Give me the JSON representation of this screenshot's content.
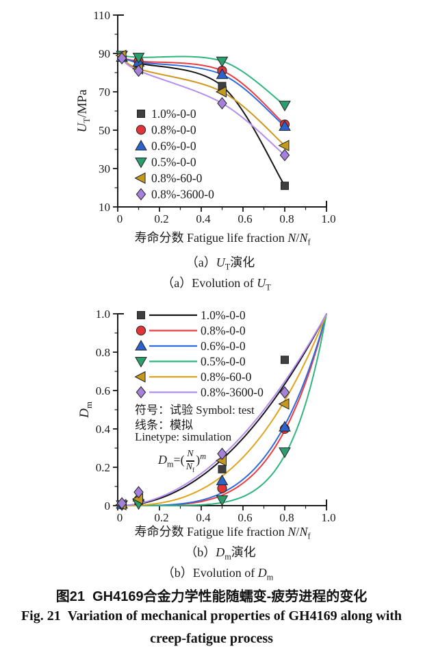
{
  "axis_labels": {
    "x": {
      "prefix": "寿命分数 Fatigue life fraction ",
      "var1": "N",
      "slash": "/",
      "var2": "N",
      "sub": "f"
    },
    "a_y": {
      "var": "U",
      "sub": "T",
      "unit": "/MPa"
    },
    "b_y": {
      "var": "D",
      "sub": "m"
    }
  },
  "figure_captions": {
    "a_cn": {
      "prefix": "（a）",
      "var": "U",
      "sub": "T",
      "suffix": "演化"
    },
    "a_en": {
      "prefix": "（a）Evolution of ",
      "var": "U",
      "sub": "T"
    },
    "b_cn": {
      "prefix": "（b）",
      "var": "D",
      "sub": "m",
      "suffix": "演化"
    },
    "b_en": {
      "prefix": "（b）Evolution of ",
      "var": "D",
      "sub": "m"
    },
    "fig_cn": "图21  GH4169合金力学性能随蠕变-疲劳进程的变化",
    "fig_en_line1": "Fig. 21  Variation of mechanical properties of GH4169 along with",
    "fig_en_line2": "creep-fatigue process"
  },
  "annotations": {
    "symbol_line": "符号：试验 Symbol: test",
    "linetype_cn": "线条：模拟",
    "linetype_en": "Linetype: simulation",
    "formula": {
      "var": "D",
      "sub": "m",
      "eq": "=(",
      "num": "N",
      "den_var": "N",
      "den_sub": "f",
      "close": ")",
      "exp": "m"
    }
  },
  "chart_data": [
    {
      "type": "line",
      "title": "(a) Evolution of UT",
      "xlabel": "寿命分数 Fatigue life fraction N/Nf",
      "ylabel": "UT/MPa",
      "xlim": [
        0,
        1.0
      ],
      "ylim": [
        10,
        110
      ],
      "x_ticks": [
        0,
        0.2,
        0.4,
        0.6,
        0.8,
        1.0
      ],
      "x_tick_labels": [
        "0",
        "0.2",
        "0.4",
        "0.6",
        "0.8",
        "1.0"
      ],
      "y_ticks": [
        10,
        30,
        50,
        70,
        90,
        110
      ],
      "y_tick_labels": [
        "10",
        "30",
        "50",
        "70",
        "90",
        "110"
      ],
      "grid": false,
      "legend_position": "inside-lower-left",
      "x": [
        0.02,
        0.1,
        0.5,
        0.8
      ],
      "series": [
        {
          "name": "1.0%-0-0",
          "marker": "square",
          "color": "#3f3f3f",
          "line_color": "#141414",
          "values": [
            88,
            85,
            73,
            21
          ]
        },
        {
          "name": "0.8%-0-0",
          "marker": "circle",
          "color": "#e03439",
          "line_color": "#ee3a3e",
          "values": [
            88,
            86,
            81,
            53
          ]
        },
        {
          "name": "0.6%-0-0",
          "marker": "triangle-up",
          "color": "#2b62cc",
          "line_color": "#2c6ade",
          "values": [
            88,
            85.5,
            79,
            52
          ]
        },
        {
          "name": "0.5%-0-0",
          "marker": "triangle-down",
          "color": "#2c9e6e",
          "line_color": "#2eb47c",
          "values": [
            89,
            88,
            86,
            63
          ]
        },
        {
          "name": "0.8%-60-0",
          "marker": "triangle-left",
          "color": "#c4991e",
          "line_color": "#d1971c",
          "values": [
            89,
            82,
            70,
            42
          ]
        },
        {
          "name": "0.8%-3600-0",
          "marker": "diamond",
          "color": "#a482dc",
          "line_color": "#b48df0",
          "values": [
            87.5,
            81,
            64,
            37
          ]
        }
      ]
    },
    {
      "type": "line+scatter",
      "title": "(b) Evolution of Dm",
      "xlabel": "寿命分数 Fatigue life fraction N/Nf",
      "ylabel": "Dm",
      "model": "Dm=(N/Nf)^m, symbols = test, lines = simulation",
      "xlim": [
        0,
        1.0
      ],
      "ylim": [
        0,
        1.0
      ],
      "x_ticks": [
        0,
        0.2,
        0.4,
        0.6,
        0.8,
        1.0
      ],
      "x_tick_labels": [
        "0",
        "0.2",
        "0.4",
        "0.6",
        "0.8",
        "1.0"
      ],
      "y_ticks": [
        0,
        0.2,
        0.4,
        0.6,
        0.8,
        1.0
      ],
      "y_tick_labels": [
        "0",
        "0.2",
        "0.4",
        "0.6",
        "0.8",
        "1.0"
      ],
      "grid": false,
      "legend_position": "inside-upper-left",
      "series": [
        {
          "name": "1.0%-0-0",
          "marker": "square",
          "color": "#3f3f3f",
          "line_color": "#141414",
          "m_exponent": 2.05,
          "points": [
            [
              0.02,
              0.006
            ],
            [
              0.1,
              0.025
            ],
            [
              0.5,
              0.19
            ],
            [
              0.8,
              0.76
            ]
          ]
        },
        {
          "name": "0.8%-0-0",
          "marker": "circle",
          "color": "#e03439",
          "line_color": "#ee3a3e",
          "m_exponent": 4.2,
          "points": [
            [
              0.02,
              0.005
            ],
            [
              0.1,
              0.03
            ],
            [
              0.5,
              0.09
            ],
            [
              0.8,
              0.4
            ]
          ]
        },
        {
          "name": "0.6%-0-0",
          "marker": "triangle-up",
          "color": "#2b62cc",
          "line_color": "#2c6ade",
          "m_exponent": 3.9,
          "points": [
            [
              0.02,
              0.008
            ],
            [
              0.1,
              0.045
            ],
            [
              0.5,
              0.13
            ],
            [
              0.8,
              0.41
            ]
          ]
        },
        {
          "name": "0.5%-0-0",
          "marker": "triangle-down",
          "color": "#2c9e6e",
          "line_color": "#2eb47c",
          "m_exponent": 6.0,
          "points": [
            [
              0.02,
              0.004
            ],
            [
              0.1,
              0.01
            ],
            [
              0.5,
              0.03
            ],
            [
              0.8,
              0.28
            ]
          ]
        },
        {
          "name": "0.8%-60-0",
          "marker": "triangle-left",
          "color": "#c4991e",
          "line_color": "#e0a41b",
          "m_exponent": 2.7,
          "points": [
            [
              0.02,
              0.005
            ],
            [
              0.1,
              0.035
            ],
            [
              0.5,
              0.235
            ],
            [
              0.8,
              0.53
            ]
          ]
        },
        {
          "name": "0.8%-3600-0",
          "marker": "diamond",
          "color": "#a482dc",
          "line_color": "#b48df0",
          "m_exponent": 1.95,
          "points": [
            [
              0.02,
              0.012
            ],
            [
              0.1,
              0.07
            ],
            [
              0.5,
              0.27
            ],
            [
              0.8,
              0.59
            ]
          ]
        }
      ]
    }
  ]
}
